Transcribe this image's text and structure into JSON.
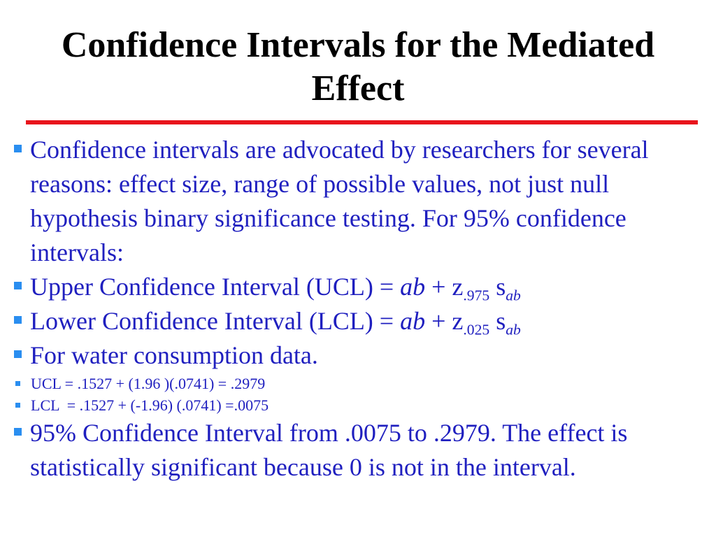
{
  "slide": {
    "title_line1": "Confidence Intervals for the Mediated",
    "title_line2": "Effect",
    "colors": {
      "title": "#000000",
      "body_text": "#1f1fbf",
      "bullet": "#2a8ef0",
      "rule": "#e8141c"
    },
    "bullets": {
      "b1": "Confidence intervals are advocated by researchers for several reasons: effect size, range of possible values, not just null hypothesis binary significance testing. For 95% confidence intervals:",
      "ucl": {
        "pre": "Upper Confidence Interval (UCL) = ",
        "ab": "ab",
        "plus_z": " + z",
        "sub1": ".975",
        "s": " s",
        "sub2": "ab"
      },
      "lcl": {
        "pre": "Lower Confidence Interval (LCL) = ",
        "ab": "ab",
        "plus_z": " + z",
        "sub1": ".025",
        "s": " s",
        "sub2": "ab"
      },
      "b4": "For water consumption data.",
      "s1": "UCL = .1527 + (1.96 )(.0741) = .2979",
      "s2": "LCL  = .1527 + (-1.96) (.0741) =.0075",
      "b5": "95% Confidence Interval from .0075 to .2979. The effect is statistically significant because 0 is not in the interval."
    }
  }
}
